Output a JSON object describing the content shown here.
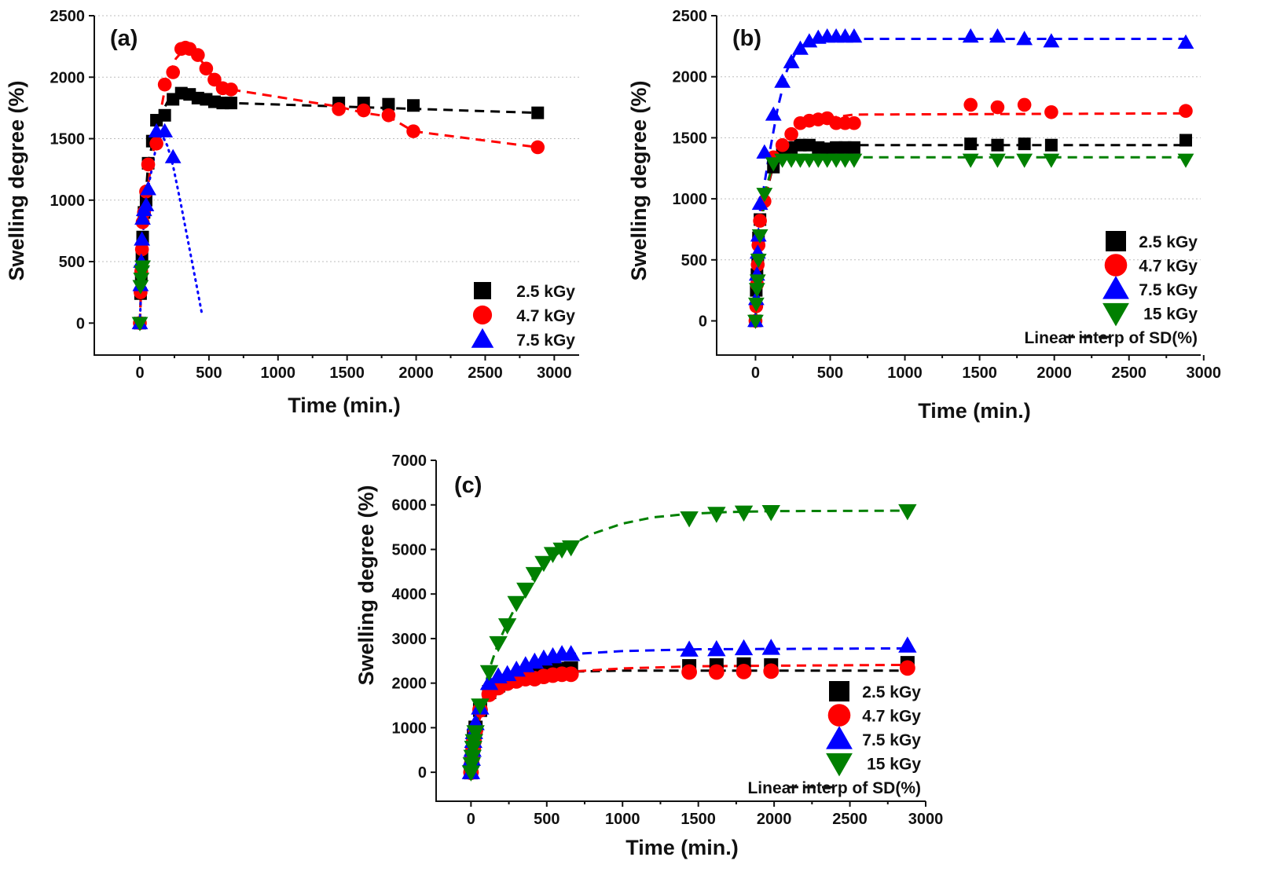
{
  "chart_data": [
    {
      "type": "scatter",
      "panel": "(a)",
      "xlabel": "Time (min.)",
      "ylabel": "Swelling degree (%)",
      "xlim": [
        -330,
        3180
      ],
      "ylim": [
        -260,
        2500
      ],
      "xticks": [
        0,
        500,
        1000,
        1500,
        2000,
        2500,
        3000
      ],
      "yticks": [
        0,
        500,
        1000,
        1500,
        2000,
        2500
      ],
      "grid": true,
      "legend_position": "bottom-right",
      "legend_entries": [
        "2.5 kGy",
        "4.7 kGy",
        "7.5 kGy"
      ],
      "series": [
        {
          "name": "2.5 kGy",
          "color": "#000000",
          "marker": "square",
          "x": [
            0,
            5,
            10,
            15,
            20,
            30,
            45,
            60,
            90,
            120,
            180,
            240,
            300,
            360,
            420,
            480,
            540,
            600,
            660,
            1440,
            1620,
            1800,
            1980,
            2880
          ],
          "y": [
            0,
            240,
            400,
            560,
            700,
            900,
            1000,
            1300,
            1480,
            1650,
            1690,
            1820,
            1870,
            1860,
            1830,
            1820,
            1800,
            1790,
            1790,
            1790,
            1790,
            1780,
            1770,
            1710
          ],
          "fit": {
            "style": "dashed",
            "x": [
              0,
              20,
              60,
              120,
              200,
              300,
              660,
              2880
            ],
            "y": [
              0,
              700,
              1300,
              1620,
              1800,
              1850,
              1790,
              1710
            ]
          }
        },
        {
          "name": "4.7 kGy",
          "color": "#ff0000",
          "marker": "circle",
          "x": [
            0,
            5,
            10,
            15,
            20,
            30,
            45,
            60,
            120,
            180,
            240,
            300,
            330,
            360,
            420,
            480,
            540,
            600,
            660,
            1440,
            1620,
            1800,
            1980,
            2880
          ],
          "y": [
            0,
            250,
            420,
            600,
            820,
            900,
            1070,
            1290,
            1460,
            1940,
            2040,
            2230,
            2240,
            2230,
            2180,
            2070,
            1980,
            1910,
            1900,
            1740,
            1730,
            1690,
            1560,
            1430
          ],
          "fit": {
            "style": "dashed",
            "x": [
              0,
              30,
              90,
              180,
              260,
              330,
              420,
              540,
              660,
              1440,
              1620,
              1800,
              1980,
              2880
            ],
            "y": [
              0,
              900,
              1350,
              1900,
              2150,
              2240,
              2170,
              1990,
              1900,
              1760,
              1710,
              1680,
              1560,
              1430
            ]
          }
        },
        {
          "name": "7.5 kGy",
          "color": "#0000ff",
          "marker": "triangle-up",
          "x": [
            0,
            5,
            10,
            15,
            20,
            30,
            45,
            60,
            120,
            180,
            240
          ],
          "y": [
            0,
            310,
            500,
            680,
            850,
            920,
            960,
            1090,
            1560,
            1560,
            1350
          ],
          "fit": {
            "style": "dotted",
            "x": [
              0,
              30,
              60,
              120,
              160,
              200,
              240,
              300,
              360,
              420,
              450
            ],
            "y": [
              0,
              900,
              1100,
              1450,
              1530,
              1440,
              1280,
              950,
              600,
              250,
              70
            ]
          }
        },
        {
          "name": "15 kGy",
          "color": "#008000",
          "marker": "triangle-down",
          "x": [
            0,
            5,
            10,
            15,
            20
          ],
          "y": [
            0,
            300,
            360,
            420,
            460
          ]
        }
      ]
    },
    {
      "type": "scatter",
      "panel": "(b)",
      "xlabel": "Time (min.)",
      "ylabel": "Swelling degree (%)",
      "xlim": [
        -260,
        2980
      ],
      "ylim": [
        -280,
        2500
      ],
      "xticks": [
        0,
        500,
        1000,
        1500,
        2000,
        2500,
        3000
      ],
      "yticks": [
        0,
        500,
        1000,
        1500,
        2000,
        2500
      ],
      "grid": true,
      "legend_position": "bottom-right",
      "legend_entries": [
        "2.5 kGy",
        "4.7 kGy",
        "7.5 kGy",
        "15 kGy",
        "Linear interp of SD(%)"
      ],
      "series": [
        {
          "name": "2.5 kGy",
          "color": "#000000",
          "marker": "square",
          "x": [
            0,
            5,
            10,
            15,
            20,
            30,
            120,
            180,
            240,
            300,
            360,
            420,
            480,
            540,
            600,
            660,
            1440,
            1620,
            1800,
            1980,
            2880
          ],
          "y": [
            0,
            250,
            380,
            500,
            680,
            830,
            1260,
            1380,
            1420,
            1440,
            1440,
            1420,
            1410,
            1420,
            1420,
            1420,
            1450,
            1440,
            1450,
            1440,
            1480
          ],
          "fit": {
            "style": "dashed",
            "x": [
              0,
              30,
              120,
              180,
              300,
              660,
              2880
            ],
            "y": [
              0,
              830,
              1280,
              1380,
              1440,
              1440,
              1440
            ]
          }
        },
        {
          "name": "4.7 kGy",
          "color": "#ff0000",
          "marker": "circle",
          "x": [
            0,
            5,
            10,
            15,
            20,
            30,
            60,
            120,
            180,
            240,
            300,
            360,
            420,
            480,
            540,
            600,
            660,
            1440,
            1620,
            1800,
            1980,
            2880
          ],
          "y": [
            0,
            120,
            300,
            460,
            620,
            820,
            980,
            1340,
            1440,
            1530,
            1620,
            1640,
            1650,
            1660,
            1620,
            1620,
            1620,
            1770,
            1750,
            1770,
            1710,
            1720
          ],
          "fit": {
            "style": "dashed",
            "x": [
              0,
              30,
              120,
              240,
              360,
              480,
              660,
              2880
            ],
            "y": [
              0,
              820,
              1300,
              1550,
              1650,
              1660,
              1690,
              1700
            ]
          }
        },
        {
          "name": "7.5 kGy",
          "color": "#0000ff",
          "marker": "triangle-up",
          "x": [
            0,
            5,
            10,
            15,
            20,
            30,
            60,
            120,
            180,
            240,
            300,
            360,
            420,
            480,
            540,
            600,
            660,
            1440,
            1620,
            1800,
            1980,
            2880
          ],
          "y": [
            0,
            180,
            380,
            560,
            700,
            960,
            1380,
            1690,
            1960,
            2120,
            2230,
            2290,
            2320,
            2330,
            2330,
            2330,
            2330,
            2330,
            2330,
            2310,
            2290,
            2280
          ],
          "fit": {
            "style": "dashed",
            "x": [
              0,
              30,
              90,
              150,
              210,
              270,
              330,
              400,
              480,
              660,
              2880
            ],
            "y": [
              0,
              900,
              1350,
              1750,
              2050,
              2200,
              2270,
              2300,
              2310,
              2310,
              2310
            ]
          }
        },
        {
          "name": "15 kGy",
          "color": "#008000",
          "marker": "triangle-down",
          "x": [
            0,
            5,
            10,
            15,
            20,
            30,
            60,
            120,
            180,
            240,
            300,
            360,
            420,
            480,
            540,
            600,
            660,
            1440,
            1620,
            1800,
            1980,
            2880
          ],
          "y": [
            0,
            140,
            260,
            330,
            500,
            700,
            1040,
            1290,
            1320,
            1320,
            1320,
            1320,
            1320,
            1320,
            1320,
            1320,
            1320,
            1320,
            1320,
            1320,
            1320,
            1320
          ],
          "fit": {
            "style": "dashed",
            "x": [
              0,
              60,
              120,
              180,
              660,
              2880
            ],
            "y": [
              0,
              1040,
              1300,
              1340,
              1340,
              1340
            ]
          }
        }
      ]
    },
    {
      "type": "scatter",
      "panel": "(c)",
      "xlabel": "Time (min.)",
      "ylabel": "Swelling degree (%)",
      "xlim": [
        -230,
        3000
      ],
      "ylim": [
        -650,
        7000
      ],
      "xticks": [
        0,
        500,
        1000,
        1500,
        2000,
        2500,
        3000
      ],
      "yticks": [
        0,
        1000,
        2000,
        3000,
        4000,
        5000,
        6000,
        7000
      ],
      "grid": false,
      "legend_position": "bottom-right",
      "legend_entries": [
        "2.5 kGy",
        "4.7 kGy",
        "7.5 kGy",
        "15 kGy",
        "Linear interp of SD(%)"
      ],
      "series": [
        {
          "name": "2.5 kGy",
          "color": "#000000",
          "marker": "square",
          "x": [
            0,
            5,
            10,
            15,
            20,
            30,
            60,
            120,
            180,
            240,
            300,
            360,
            420,
            480,
            540,
            600,
            660,
            1440,
            1620,
            1800,
            1980,
            2880
          ],
          "y": [
            0,
            250,
            420,
            600,
            800,
            1000,
            1400,
            1800,
            1950,
            2050,
            2100,
            2150,
            2200,
            2250,
            2300,
            2320,
            2330,
            2380,
            2400,
            2420,
            2400,
            2450
          ],
          "fit": {
            "style": "dashed",
            "x": [
              0,
              30,
              120,
              240,
              360,
              480,
              660,
              1000,
              2880
            ],
            "y": [
              0,
              1000,
              1800,
              2050,
              2170,
              2230,
              2260,
              2280,
              2280
            ]
          }
        },
        {
          "name": "4.7 kGy",
          "color": "#ff0000",
          "marker": "circle",
          "x": [
            0,
            5,
            10,
            15,
            20,
            30,
            60,
            120,
            180,
            240,
            300,
            360,
            420,
            480,
            540,
            600,
            660,
            1440,
            1620,
            1800,
            1980,
            2880
          ],
          "y": [
            0,
            200,
            380,
            550,
            700,
            950,
            1400,
            1750,
            1900,
            2000,
            2050,
            2100,
            2100,
            2150,
            2180,
            2200,
            2200,
            2250,
            2250,
            2260,
            2270,
            2340
          ],
          "fit": {
            "style": "dashed",
            "x": [
              0,
              30,
              120,
              240,
              360,
              480,
              660,
              1000,
              1500,
              2880
            ],
            "y": [
              0,
              950,
              1750,
              2010,
              2120,
              2180,
              2260,
              2330,
              2380,
              2410
            ]
          }
        },
        {
          "name": "7.5 kGy",
          "color": "#0000ff",
          "marker": "triangle-up",
          "x": [
            0,
            5,
            10,
            15,
            20,
            30,
            60,
            120,
            180,
            240,
            300,
            360,
            420,
            480,
            540,
            600,
            660,
            1440,
            1620,
            1800,
            1980,
            2880
          ],
          "y": [
            0,
            300,
            500,
            700,
            900,
            1100,
            1450,
            2000,
            2150,
            2200,
            2300,
            2400,
            2480,
            2550,
            2600,
            2650,
            2650,
            2750,
            2760,
            2780,
            2790,
            2840
          ],
          "fit": {
            "style": "dashed",
            "x": [
              0,
              30,
              120,
              240,
              360,
              480,
              660,
              1000,
              1500,
              2880
            ],
            "y": [
              0,
              1100,
              1900,
              2200,
              2400,
              2550,
              2650,
              2720,
              2760,
              2780
            ]
          }
        },
        {
          "name": "15 kGy",
          "color": "#008000",
          "marker": "triangle-down",
          "x": [
            0,
            5,
            10,
            15,
            20,
            30,
            60,
            120,
            180,
            240,
            300,
            360,
            420,
            480,
            540,
            600,
            660,
            1440,
            1620,
            1800,
            1980,
            2880
          ],
          "y": [
            0,
            180,
            350,
            550,
            700,
            900,
            1500,
            2250,
            2900,
            3300,
            3800,
            4100,
            4450,
            4700,
            4900,
            5000,
            5050,
            5700,
            5800,
            5830,
            5840,
            5860
          ],
          "fit": {
            "style": "dashed",
            "x": [
              0,
              30,
              60,
              120,
              180,
              240,
              300,
              360,
              420,
              480,
              540,
              600,
              660,
              800,
              1000,
              1200,
              1440,
              1700,
              2000,
              2880
            ],
            "y": [
              0,
              900,
              1500,
              2300,
              2900,
              3350,
              3750,
              4100,
              4400,
              4630,
              4820,
              4980,
              5100,
              5350,
              5580,
              5720,
              5800,
              5840,
              5860,
              5870
            ]
          }
        }
      ]
    }
  ]
}
